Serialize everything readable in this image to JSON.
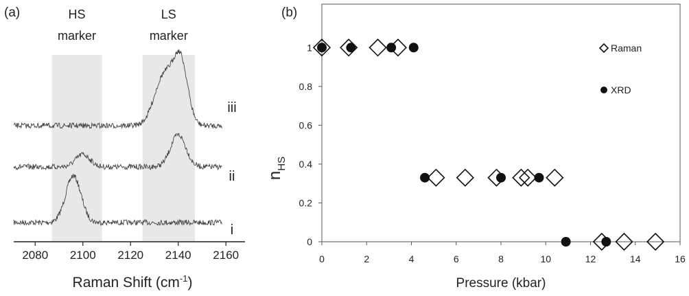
{
  "chart_data": [
    {
      "panel_label": "(a)",
      "type": "line",
      "xlabel_main": "Raman Shift (cm",
      "xlabel_sup": "-1",
      "xlabel_close": ")",
      "xlim": [
        2071,
        2168
      ],
      "xticks": [
        "2080",
        "2100",
        "2120",
        "2140",
        "2160"
      ],
      "shaded_regions": [
        {
          "label_line1": "HS",
          "label_line2": "marker",
          "x_range": [
            2087,
            2108
          ]
        },
        {
          "label_line1": "LS",
          "label_line2": "marker",
          "x_range": [
            2125,
            2147
          ]
        }
      ],
      "series": [
        {
          "name": "i",
          "peaks": [
            {
              "center": 2096,
              "amplitude": 1.0,
              "width": 3.2
            }
          ]
        },
        {
          "name": "ii",
          "peaks": [
            {
              "center": 2100,
              "amplitude": 0.35,
              "width": 3.0
            },
            {
              "center": 2140,
              "amplitude": 0.9,
              "width": 3.2
            }
          ]
        },
        {
          "name": "iii",
          "peaks": [
            {
              "center": 2134,
              "amplitude": 0.8,
              "width": 4.0
            },
            {
              "center": 2141,
              "amplitude": 1.0,
              "width": 3.0
            }
          ]
        }
      ]
    },
    {
      "panel_label": "(b)",
      "type": "scatter",
      "xlabel": "Pressure (kbar)",
      "ylabel_main": "n",
      "ylabel_sub": "HS",
      "xlim": [
        0,
        16
      ],
      "ylim": [
        0,
        1.1
      ],
      "xticks": [
        0,
        2,
        4,
        6,
        8,
        10,
        12,
        14,
        16
      ],
      "yticks": [
        "0",
        "0.2",
        "0.4",
        "0.6",
        "0.8",
        "1"
      ],
      "ytick_values": [
        0,
        0.2,
        0.4,
        0.6,
        0.8,
        1.0
      ],
      "legend_position": "top-right",
      "series": [
        {
          "name": "Raman",
          "marker": "open-diamond",
          "x": [
            0.0,
            1.2,
            2.5,
            3.4,
            5.1,
            6.4,
            7.8,
            8.9,
            9.2,
            10.4,
            12.5,
            13.5,
            14.9
          ],
          "y": [
            1,
            1,
            1,
            1,
            0.33,
            0.33,
            0.33,
            0.33,
            0.33,
            0.33,
            0,
            0,
            0
          ]
        },
        {
          "name": "XRD",
          "marker": "filled-circle",
          "x": [
            0.0,
            1.3,
            3.1,
            4.1,
            4.6,
            8.0,
            9.7,
            10.9,
            12.7
          ],
          "y": [
            1,
            1,
            1,
            1,
            0.33,
            0.33,
            0.33,
            0,
            0
          ]
        }
      ]
    }
  ]
}
